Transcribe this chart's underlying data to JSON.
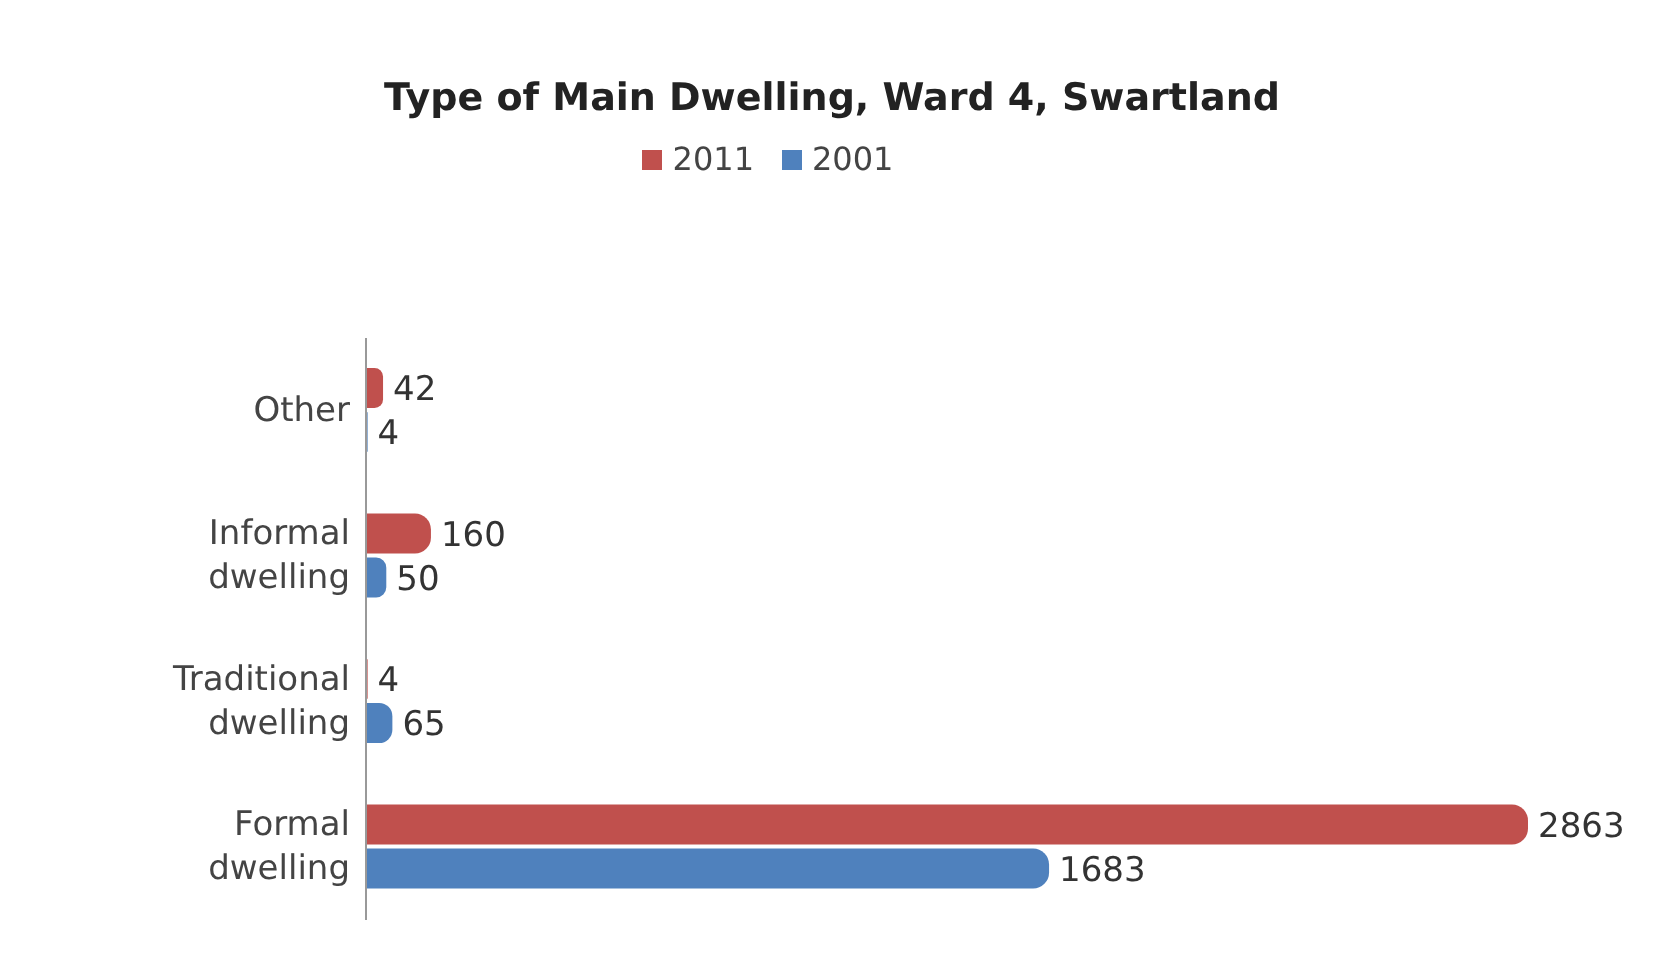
{
  "chart_data": {
    "type": "bar",
    "orientation": "horizontal",
    "title": "Type of Main Dwelling, Ward 4, Swartland",
    "categories": [
      "Other",
      "Informal dwelling",
      "Traditional dwelling",
      "Formal dwelling"
    ],
    "series": [
      {
        "name": "2011",
        "color": "#c0504d",
        "values": [
          42,
          160,
          4,
          2863
        ]
      },
      {
        "name": "2001",
        "color": "#4f81bd",
        "values": [
          4,
          50,
          65,
          1683
        ]
      }
    ],
    "data_labels": true,
    "legend": "top",
    "tick_labels": "y"
  }
}
